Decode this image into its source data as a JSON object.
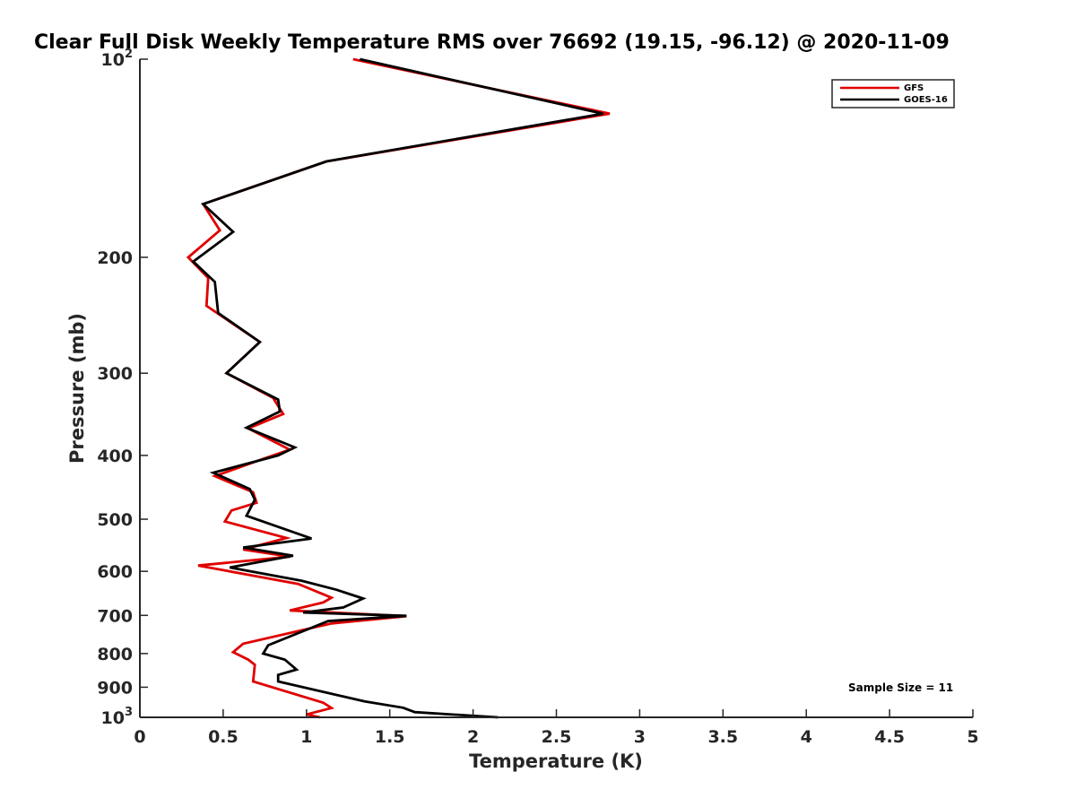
{
  "chart_data": {
    "type": "line",
    "title": "Clear Full Disk Weekly Temperature RMS over 76692 (19.15, -96.12) @ 2020-11-09",
    "xlabel": "Temperature (K)",
    "ylabel": "Pressure (mb)",
    "xlim": [
      0,
      5
    ],
    "ylim": [
      100,
      1000
    ],
    "yscale": "log",
    "yreversed": true,
    "grid": false,
    "legend_position": "top-right",
    "x_ticks": [
      {
        "value": 0,
        "label": "0"
      },
      {
        "value": 0.5,
        "label": "0.5"
      },
      {
        "value": 1,
        "label": "1"
      },
      {
        "value": 1.5,
        "label": "1.5"
      },
      {
        "value": 2,
        "label": "2"
      },
      {
        "value": 2.5,
        "label": "2.5"
      },
      {
        "value": 3,
        "label": "3"
      },
      {
        "value": 3.5,
        "label": "3.5"
      },
      {
        "value": 4,
        "label": "4"
      },
      {
        "value": 4.5,
        "label": "4.5"
      },
      {
        "value": 5,
        "label": "5"
      }
    ],
    "y_ticks": [
      {
        "value": 100,
        "base": "10",
        "exp": "2"
      },
      {
        "value": 200,
        "base": "200",
        "exp": ""
      },
      {
        "value": 300,
        "base": "300",
        "exp": ""
      },
      {
        "value": 400,
        "base": "400",
        "exp": ""
      },
      {
        "value": 500,
        "base": "500",
        "exp": ""
      },
      {
        "value": 600,
        "base": "600",
        "exp": ""
      },
      {
        "value": 700,
        "base": "700",
        "exp": ""
      },
      {
        "value": 800,
        "base": "800",
        "exp": ""
      },
      {
        "value": 900,
        "base": "900",
        "exp": ""
      },
      {
        "value": 1000,
        "base": "10",
        "exp": "3"
      }
    ],
    "annotation": "Sample Size = 11",
    "series": [
      {
        "name": "GFS",
        "color": "#e00000",
        "points": [
          [
            1.28,
            100
          ],
          [
            2.82,
            121
          ],
          [
            1.12,
            143
          ],
          [
            0.38,
            166
          ],
          [
            0.48,
            182
          ],
          [
            0.29,
            200
          ],
          [
            0.41,
            215
          ],
          [
            0.4,
            237
          ],
          [
            0.72,
            269
          ],
          [
            0.52,
            300
          ],
          [
            0.8,
            327
          ],
          [
            0.86,
            346
          ],
          [
            0.65,
            364
          ],
          [
            0.9,
            392
          ],
          [
            0.75,
            404
          ],
          [
            0.45,
            430
          ],
          [
            0.68,
            455
          ],
          [
            0.7,
            472
          ],
          [
            0.55,
            485
          ],
          [
            0.51,
            504
          ],
          [
            0.88,
            534
          ],
          [
            0.62,
            556
          ],
          [
            0.9,
            570
          ],
          [
            0.35,
            588
          ],
          [
            0.95,
            627
          ],
          [
            1.15,
            658
          ],
          [
            1.1,
            669
          ],
          [
            0.9,
            688
          ],
          [
            1.6,
            702
          ],
          [
            1.15,
            720
          ],
          [
            0.62,
            773
          ],
          [
            0.56,
            796
          ],
          [
            0.65,
            817
          ],
          [
            0.69,
            832
          ],
          [
            0.68,
            882
          ],
          [
            1.1,
            950
          ],
          [
            1.15,
            968
          ],
          [
            1.0,
            990
          ],
          [
            1.08,
            1000
          ]
        ]
      },
      {
        "name": "GOES-16",
        "color": "#000000",
        "points": [
          [
            1.32,
            100
          ],
          [
            2.78,
            121
          ],
          [
            1.12,
            143
          ],
          [
            0.38,
            166
          ],
          [
            0.56,
            183
          ],
          [
            0.32,
            203
          ],
          [
            0.45,
            218
          ],
          [
            0.47,
            243
          ],
          [
            0.72,
            269
          ],
          [
            0.52,
            300
          ],
          [
            0.83,
            329
          ],
          [
            0.84,
            343
          ],
          [
            0.64,
            363
          ],
          [
            0.93,
            389
          ],
          [
            0.83,
            400
          ],
          [
            0.44,
            425
          ],
          [
            0.66,
            450
          ],
          [
            0.69,
            467
          ],
          [
            0.64,
            494
          ],
          [
            1.03,
            535
          ],
          [
            0.62,
            552
          ],
          [
            0.92,
            568
          ],
          [
            0.54,
            592
          ],
          [
            0.97,
            620
          ],
          [
            1.18,
            640
          ],
          [
            1.34,
            660
          ],
          [
            1.22,
            681
          ],
          [
            0.98,
            693
          ],
          [
            1.6,
            701
          ],
          [
            1.13,
            714
          ],
          [
            0.77,
            777
          ],
          [
            0.74,
            800
          ],
          [
            0.87,
            817
          ],
          [
            0.94,
            846
          ],
          [
            0.83,
            862
          ],
          [
            0.83,
            882
          ],
          [
            1.35,
            946
          ],
          [
            1.58,
            967
          ],
          [
            1.65,
            982
          ],
          [
            2.15,
            1000
          ]
        ]
      }
    ]
  }
}
